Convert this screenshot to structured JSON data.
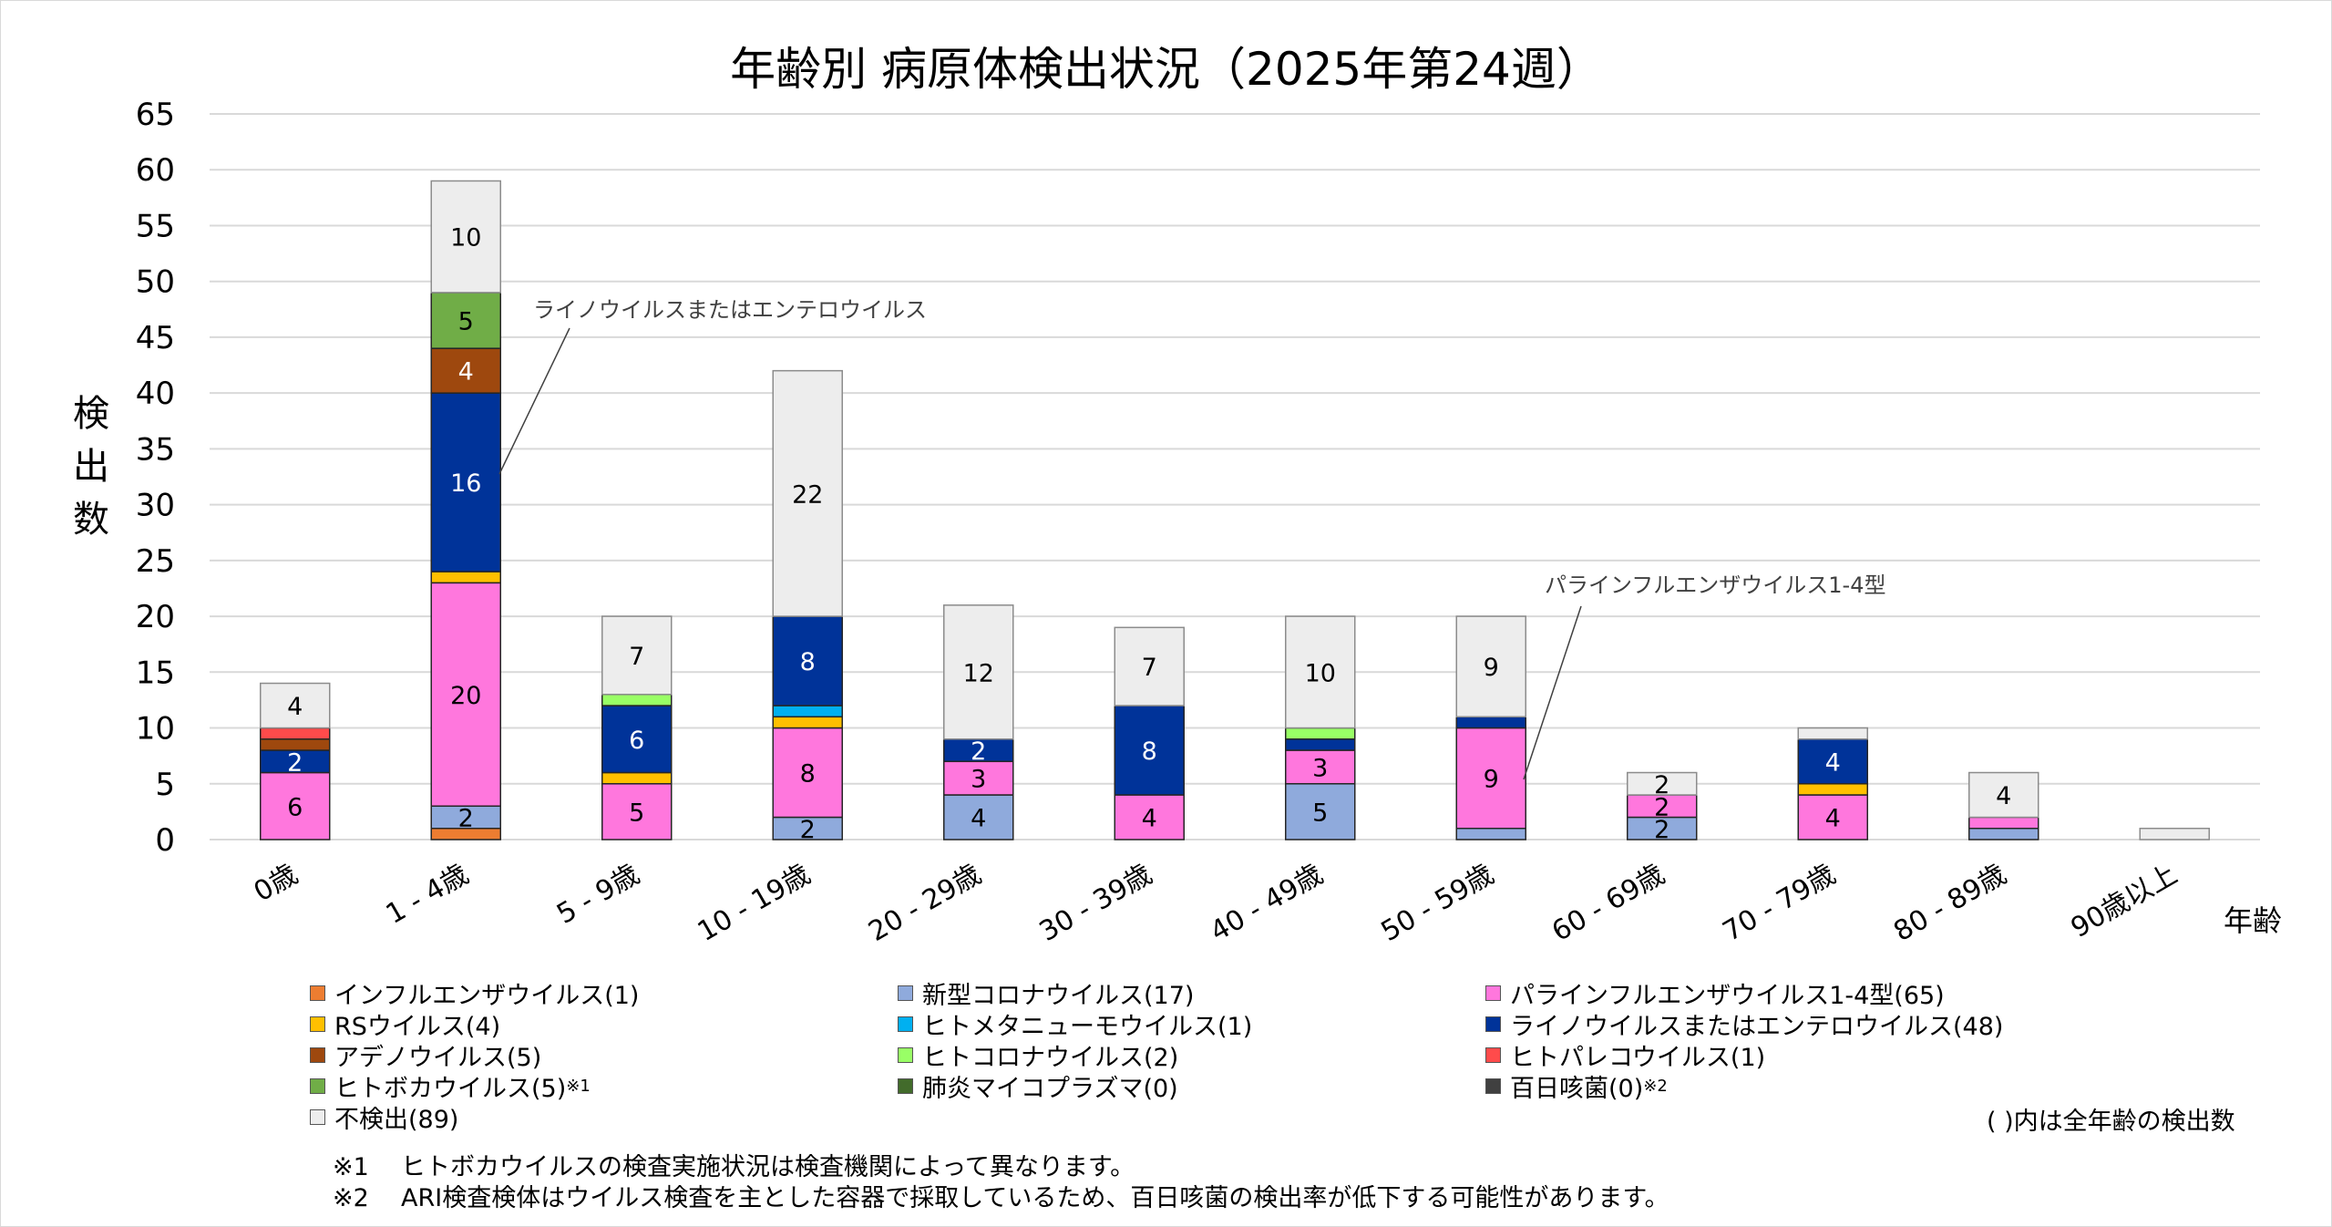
{
  "title": "年齢別 病原体検出状況（2025年第24週）",
  "yaxis_label": [
    "検",
    "出",
    "数"
  ],
  "xaxis_title": "年齢",
  "legend_note": "( )内は全年齢の検出数",
  "footnotes": [
    {
      "mark": "※1",
      "text": "ヒトボカウイルスの検査実施状況は検査機関によって異なります。"
    },
    {
      "mark": "※2",
      "text": "ARI検査検体はウイルス検査を主とした容器で採取しているため、百日咳菌の検出率が低下する可能性があります。"
    }
  ],
  "annotations": [
    {
      "text": "ライノウイルスまたはエンテロウイルス",
      "category": "1 - 4歳",
      "series": "ライノウイルスまたはエンテロウイルス"
    },
    {
      "text": "パラインフルエンザウイルス1-4型",
      "category": "50 - 59歳",
      "series": "パラインフルエンザウイルス1-4型"
    }
  ],
  "chart_data": {
    "type": "bar",
    "stacked": true,
    "title": "年齢別 病原体検出状況（2025年第24週）",
    "xlabel": "年齢",
    "ylabel": "検出数",
    "ylim": [
      0,
      65
    ],
    "yticks": [
      0,
      5,
      10,
      15,
      20,
      25,
      30,
      35,
      40,
      45,
      50,
      55,
      60,
      65
    ],
    "grid": true,
    "legend_position": "bottom",
    "categories": [
      "0歳",
      "1 - 4歳",
      "5 - 9歳",
      "10 - 19歳",
      "20 - 29歳",
      "30 - 39歳",
      "40 - 49歳",
      "50 - 59歳",
      "60 - 69歳",
      "70 - 79歳",
      "80 - 89歳",
      "90歳以上"
    ],
    "series": [
      {
        "name": "インフルエンザウイルス",
        "total": 1,
        "color": "#ED7D31",
        "label_color": "#000000",
        "values": [
          0,
          1,
          0,
          0,
          0,
          0,
          0,
          0,
          0,
          0,
          0,
          0
        ]
      },
      {
        "name": "新型コロナウイルス",
        "total": 17,
        "color": "#8FAADC",
        "label_color": "#000000",
        "values": [
          0,
          2,
          0,
          2,
          4,
          0,
          5,
          1,
          2,
          0,
          1,
          0
        ]
      },
      {
        "name": "パラインフルエンザウイルス1-4型",
        "total": 65,
        "color": "#FF77DD",
        "label_color": "#000000",
        "values": [
          6,
          20,
          5,
          8,
          3,
          4,
          3,
          9,
          2,
          4,
          1,
          0
        ]
      },
      {
        "name": "RSウイルス",
        "total": 4,
        "color": "#FFC000",
        "label_color": "#000000",
        "values": [
          0,
          1,
          1,
          1,
          0,
          0,
          0,
          0,
          0,
          1,
          0,
          0
        ]
      },
      {
        "name": "ヒトメタニューモウイルス",
        "total": 1,
        "color": "#00B0F0",
        "label_color": "#000000",
        "values": [
          0,
          0,
          0,
          1,
          0,
          0,
          0,
          0,
          0,
          0,
          0,
          0
        ]
      },
      {
        "name": "ライノウイルスまたはエンテロウイルス",
        "total": 48,
        "color": "#003399",
        "label_color": "#FFFFFF",
        "values": [
          2,
          16,
          6,
          8,
          2,
          8,
          1,
          1,
          0,
          4,
          0,
          0
        ]
      },
      {
        "name": "アデノウイルス",
        "total": 5,
        "color": "#9E480E",
        "label_color": "#FFFFFF",
        "values": [
          1,
          4,
          0,
          0,
          0,
          0,
          0,
          0,
          0,
          0,
          0,
          0
        ]
      },
      {
        "name": "ヒトコロナウイルス",
        "total": 2,
        "color": "#99FF66",
        "label_color": "#000000",
        "values": [
          0,
          0,
          1,
          0,
          0,
          0,
          1,
          0,
          0,
          0,
          0,
          0
        ]
      },
      {
        "name": "ヒトパレコウイルス",
        "total": 1,
        "color": "#FF4B4B",
        "label_color": "#000000",
        "values": [
          1,
          0,
          0,
          0,
          0,
          0,
          0,
          0,
          0,
          0,
          0,
          0
        ]
      },
      {
        "name": "ヒトボカウイルス",
        "total": 5,
        "note": "※1",
        "color": "#70AD47",
        "label_color": "#000000",
        "values": [
          0,
          5,
          0,
          0,
          0,
          0,
          0,
          0,
          0,
          0,
          0,
          0
        ]
      },
      {
        "name": "肺炎マイコプラズマ",
        "total": 0,
        "color": "#426B2B",
        "label_color": "#FFFFFF",
        "values": [
          0,
          0,
          0,
          0,
          0,
          0,
          0,
          0,
          0,
          0,
          0,
          0
        ]
      },
      {
        "name": "百日咳菌",
        "total": 0,
        "note": "※2",
        "color": "#404040",
        "label_color": "#FFFFFF",
        "values": [
          0,
          0,
          0,
          0,
          0,
          0,
          0,
          0,
          0,
          0,
          0,
          0
        ]
      },
      {
        "name": "不検出",
        "total": 89,
        "color": "#EDEDED",
        "label_color": "#000000",
        "values": [
          4,
          10,
          7,
          22,
          12,
          7,
          10,
          9,
          2,
          1,
          4,
          1
        ]
      }
    ],
    "data_labels_shown_min": 2
  },
  "legend": [
    {
      "label": "インフルエンザウイルス(1)",
      "color": "#ED7D31",
      "note": ""
    },
    {
      "label": "新型コロナウイルス(17)",
      "color": "#8FAADC",
      "note": ""
    },
    {
      "label": "パラインフルエンザウイルス1-4型(65)",
      "color": "#FF77DD",
      "note": ""
    },
    {
      "label": "RSウイルス(4)",
      "color": "#FFC000",
      "note": ""
    },
    {
      "label": "ヒトメタニューモウイルス(1)",
      "color": "#00B0F0",
      "note": ""
    },
    {
      "label": "ライノウイルスまたはエンテロウイルス(48)",
      "color": "#003399",
      "note": ""
    },
    {
      "label": "アデノウイルス(5)",
      "color": "#9E480E",
      "note": ""
    },
    {
      "label": "ヒトコロナウイルス(2)",
      "color": "#99FF66",
      "note": ""
    },
    {
      "label": "ヒトパレコウイルス(1)",
      "color": "#FF4B4B",
      "note": ""
    },
    {
      "label": "ヒトボカウイルス(5)",
      "color": "#70AD47",
      "note": "※1"
    },
    {
      "label": "肺炎マイコプラズマ(0)",
      "color": "#426B2B",
      "note": ""
    },
    {
      "label": "百日咳菌(0)",
      "color": "#404040",
      "note": "※2"
    },
    {
      "label": "不検出(89)",
      "color": "#EDEDED",
      "note": ""
    }
  ]
}
